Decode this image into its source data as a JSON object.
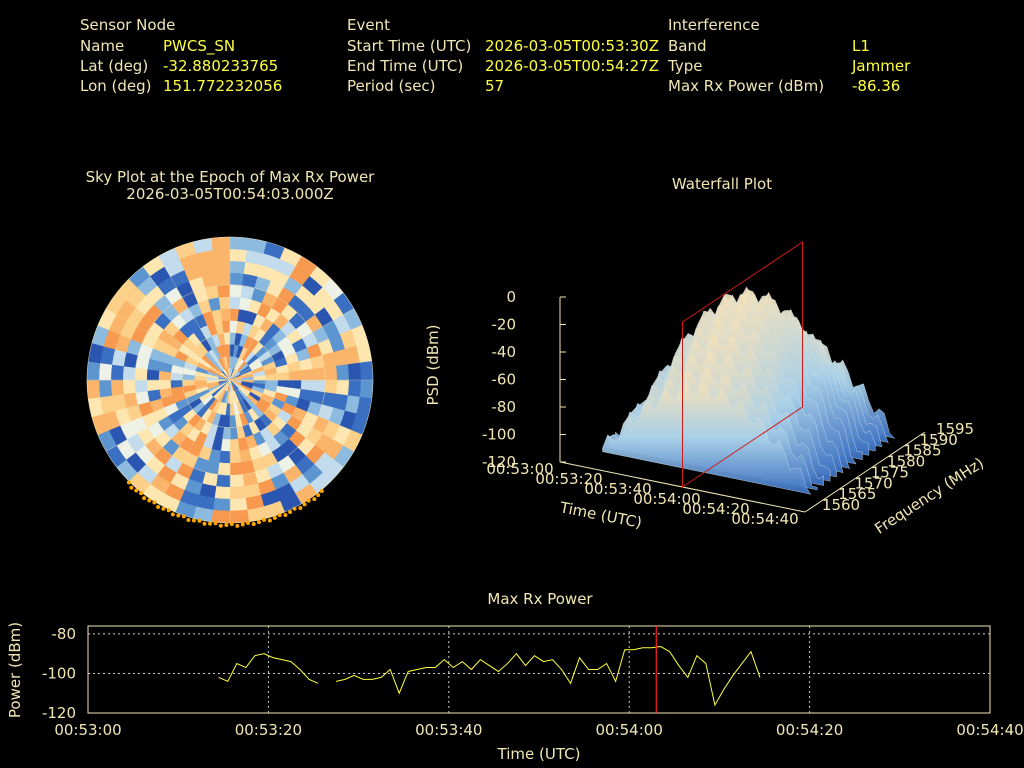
{
  "header": {
    "sensor": {
      "title": "Sensor Node",
      "name_label": "Name",
      "name": "PWCS_SN",
      "lat_label": "Lat (deg)",
      "lat": "-32.880233765",
      "lon_label": "Lon (deg)",
      "lon": "151.772232056"
    },
    "event": {
      "title": "Event",
      "start_label": "Start Time (UTC)",
      "start": "2026-03-05T00:53:30Z",
      "end_label": "End Time (UTC)",
      "end": "2026-03-05T00:54:27Z",
      "period_label": "Period (sec)",
      "period": "57"
    },
    "interference": {
      "title": "Interference",
      "band_label": "Band",
      "band": "L1",
      "type_label": "Type",
      "type": "Jammer",
      "maxrx_label": "Max Rx Power (dBm)",
      "maxrx": "-86.36"
    }
  },
  "colors": {
    "text": "#f0e6b4",
    "value": "#ffff40",
    "line": "#ffff40",
    "marker": "#ff2020",
    "orange": "#ffa500"
  },
  "chart_data": [
    {
      "type": "polar-heatmap",
      "title": "Sky Plot at the Epoch of Max Rx Power",
      "subtitle": "2026-03-05T00:54:03.000Z",
      "colormap": "blue-to-orange"
    },
    {
      "type": "surface",
      "title": "Waterfall Plot",
      "xlabel": "Time (UTC)",
      "ylabel": "Frequency (MHz)",
      "zlabel": "PSD (dBm)",
      "x_ticks": [
        "00:53:00",
        "00:53:20",
        "00:53:40",
        "00:54:00",
        "00:54:20",
        "00:54:40"
      ],
      "y_ticks": [
        "1560",
        "1565",
        "1570",
        "1575",
        "1580",
        "1585",
        "1590",
        "1595"
      ],
      "z_ticks": [
        "0",
        "-20",
        "-40",
        "-60",
        "-80",
        "-100",
        "-120"
      ],
      "zlim": [
        -120,
        0
      ],
      "marker_time": "00:54:03"
    },
    {
      "type": "line",
      "title": "Max Rx Power",
      "xlabel": "Time (UTC)",
      "ylabel": "Power (dBm)",
      "x_ticks": [
        "00:53:00",
        "00:53:20",
        "00:53:40",
        "00:54:00",
        "00:54:20",
        "00:54:40"
      ],
      "y_ticks": [
        "-80",
        "-100",
        "-120"
      ],
      "xlim": [
        0,
        100
      ],
      "ylim": [
        -120,
        -76
      ],
      "grid": true,
      "marker_x": 63,
      "x": [
        14.5,
        15.5,
        16.5,
        17.5,
        18.5,
        19.5,
        20.5,
        21.5,
        22.5,
        23.5,
        24.5,
        25.5,
        27.5,
        28.5,
        29.5,
        30.5,
        31.5,
        32.5,
        33.5,
        34.5,
        35.5,
        36.5,
        37.5,
        38.5,
        39.5,
        40.5,
        41.5,
        42.5,
        43.5,
        44.5,
        45.5,
        46.5,
        47.5,
        48.5,
        49.5,
        50.5,
        51.5,
        52.5,
        53.5,
        54.5,
        55.5,
        56.5,
        57.5,
        58.5,
        59.5,
        60.5,
        61.5,
        62.5,
        63.5,
        64.5,
        65.5,
        66.5,
        67.5,
        68.5,
        69.5,
        70.5,
        71.5,
        72.5,
        73.5,
        74.5
      ],
      "y": [
        -102,
        -104,
        -95,
        -97,
        -91,
        -90,
        -92,
        -93,
        -94,
        -98,
        -103,
        -105,
        -104,
        -103,
        -101,
        -103,
        -103,
        -102,
        -98,
        -110,
        -99,
        -98,
        -97,
        -97,
        -93,
        -97,
        -94,
        -98,
        -93,
        -96,
        -99,
        -95,
        -90,
        -96,
        -91,
        -94,
        -93,
        -98,
        -105,
        -92,
        -98,
        -98,
        -95,
        -104,
        -88,
        -88,
        -87,
        -87,
        -86.4,
        -89,
        -96,
        -102,
        -91,
        -95,
        -116,
        -108,
        -101,
        -95,
        -89,
        -102
      ]
    }
  ]
}
